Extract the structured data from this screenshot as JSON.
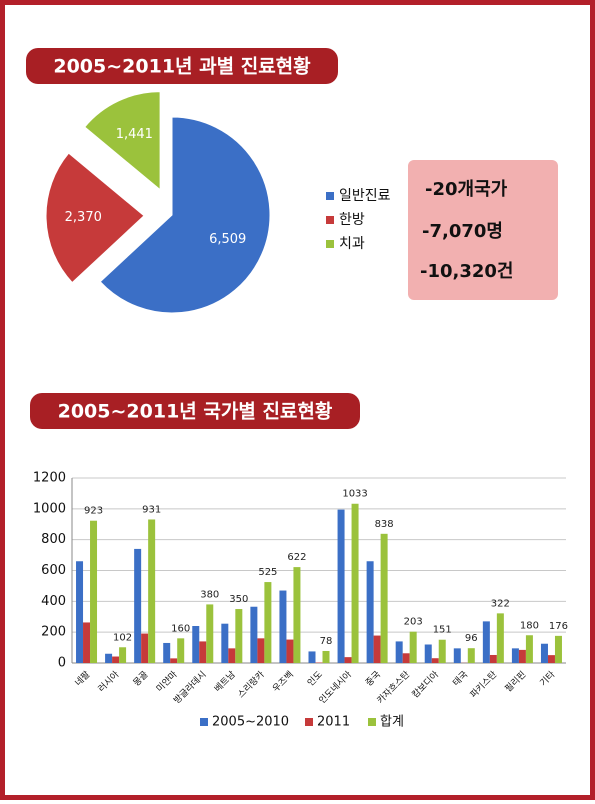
{
  "chart_data": [
    {
      "type": "pie",
      "title": "2005~2011년 과별 진료현황",
      "categories": [
        "일반진료",
        "한방",
        "치과"
      ],
      "values": [
        6509,
        2370,
        1441
      ],
      "value_labels": [
        "6,509",
        "2,370",
        "1,441"
      ],
      "colors": [
        "#3b6fc6",
        "#c63a3a",
        "#9bc23c"
      ],
      "exploded": [
        false,
        true,
        true
      ],
      "legend": "right"
    },
    {
      "type": "bar",
      "title": "2005~2011년 국가별 진료현황",
      "categories": [
        "네팔",
        "러시아",
        "몽골",
        "미얀마",
        "방글라데시",
        "베트남",
        "스리랑카",
        "우즈벡",
        "인도",
        "인도네시아",
        "중국",
        "카자흐스탄",
        "캄보디아",
        "태국",
        "파키스탄",
        "필리핀",
        "기타"
      ],
      "series": [
        {
          "name": "2005~2010",
          "color": "#3b6fc6",
          "values": [
            660,
            60,
            740,
            130,
            240,
            255,
            365,
            470,
            75,
            995,
            660,
            140,
            120,
            95,
            270,
            95,
            125
          ]
        },
        {
          "name": "2011",
          "color": "#c63a3a",
          "values": [
            263,
            42,
            191,
            30,
            140,
            95,
            160,
            152,
            3,
            38,
            178,
            63,
            31,
            1,
            52,
            85,
            51
          ]
        },
        {
          "name": "합계",
          "color": "#9bc23c",
          "values": [
            923,
            102,
            931,
            160,
            380,
            350,
            525,
            622,
            78,
            1033,
            838,
            203,
            151,
            96,
            322,
            180,
            176
          ],
          "data_labels": true
        }
      ],
      "ylim": [
        0,
        1200
      ],
      "yticks": [
        0,
        200,
        400,
        600,
        800,
        1000,
        1200
      ],
      "grid": true,
      "legend": "bottom"
    }
  ],
  "summary_box": [
    "-20개국가",
    "-7,070명",
    "-10,320건"
  ]
}
